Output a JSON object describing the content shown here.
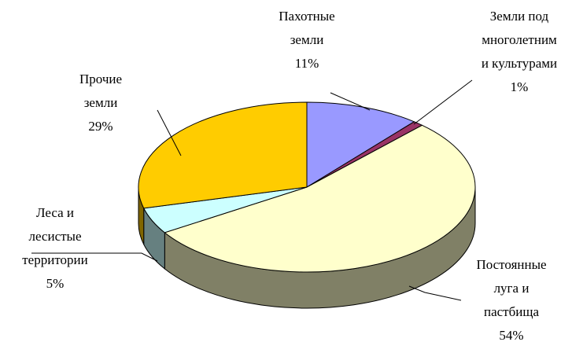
{
  "chart_data": {
    "type": "pie3d",
    "categories": [
      [
        "Пахотные",
        "земли"
      ],
      [
        "Земли под",
        "многолетним",
        "и культурами"
      ],
      [
        "Постоянные",
        "луга и",
        "пастбища"
      ],
      [
        "Леса и",
        "лесистые",
        "территории"
      ],
      [
        "Прочие",
        "земли"
      ]
    ],
    "values": [
      11,
      1,
      54,
      5,
      29
    ],
    "value_labels": [
      "11%",
      "1%",
      "54%",
      "5%",
      "29%"
    ],
    "colors": [
      "#9999ff",
      "#993366",
      "#ffffcc",
      "#ccffff",
      "#ffcc00"
    ]
  }
}
